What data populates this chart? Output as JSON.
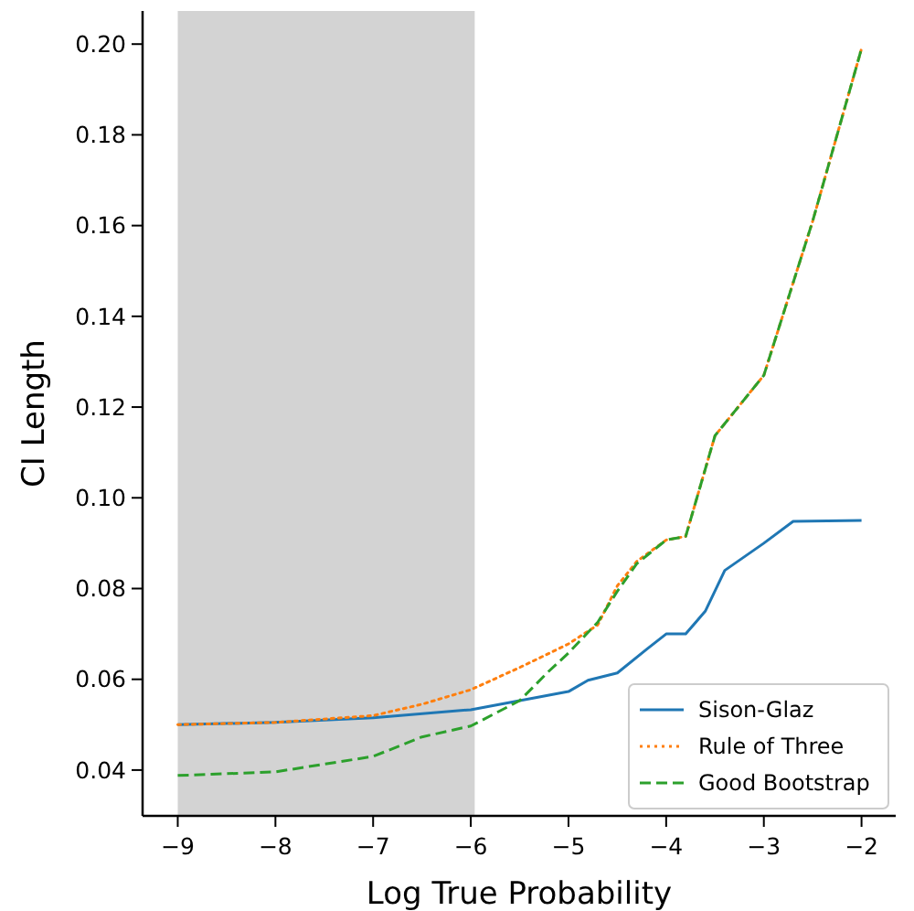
{
  "chart_data": {
    "type": "line",
    "xlabel": "Log True Probability",
    "ylabel": "CI Length",
    "xlim": [
      -9.36,
      -1.65
    ],
    "ylim": [
      0.0299,
      0.2073
    ],
    "xticks": [
      {
        "value": -9,
        "label": "−9"
      },
      {
        "value": -8,
        "label": "−8"
      },
      {
        "value": -7,
        "label": "−7"
      },
      {
        "value": -6,
        "label": "−6"
      },
      {
        "value": -5,
        "label": "−5"
      },
      {
        "value": -4,
        "label": "−4"
      },
      {
        "value": -3,
        "label": "−3"
      },
      {
        "value": -2,
        "label": "−2"
      }
    ],
    "yticks": [
      {
        "value": 0.04,
        "label": "0.04"
      },
      {
        "value": 0.06,
        "label": "0.06"
      },
      {
        "value": 0.08,
        "label": "0.08"
      },
      {
        "value": 0.1,
        "label": "0.10"
      },
      {
        "value": 0.12,
        "label": "0.12"
      },
      {
        "value": 0.14,
        "label": "0.14"
      },
      {
        "value": 0.16,
        "label": "0.16"
      },
      {
        "value": 0.18,
        "label": "0.18"
      },
      {
        "value": 0.2,
        "label": "0.20"
      }
    ],
    "grid": false,
    "legend": "bottom right",
    "marker": "none",
    "bands": [
      {
        "axis": "x",
        "from": -9,
        "to": -5.96,
        "color": "#d3d3d3"
      }
    ],
    "series": [
      {
        "name": "Sison-Glaz",
        "color": "#1f77b4",
        "line_style": "solid",
        "x": [
          -9,
          -8,
          -7,
          -6,
          -5.5,
          -5,
          -4.8,
          -4.5,
          -4.2,
          -4,
          -3.8,
          -3.6,
          -3.4,
          -3,
          -2.7,
          -2
        ],
        "values": [
          0.05,
          0.0505,
          0.0515,
          0.0533,
          0.0553,
          0.0573,
          0.0598,
          0.0614,
          0.0666,
          0.07,
          0.07,
          0.075,
          0.084,
          0.09,
          0.0948,
          0.095
        ]
      },
      {
        "name": "Rule of Three",
        "color": "#ff7f0e",
        "line_style": "dotted",
        "x": [
          -9,
          -8,
          -7,
          -6.5,
          -6,
          -5.5,
          -5,
          -4.7,
          -4.5,
          -4.3,
          -4,
          -3.8,
          -3.5,
          -3,
          -2.5,
          -2
        ],
        "values": [
          0.05,
          0.0505,
          0.052,
          0.0545,
          0.0577,
          0.0626,
          0.0678,
          0.072,
          0.0806,
          0.086,
          0.0907,
          0.0915,
          0.1137,
          0.127,
          0.161,
          0.199
        ]
      },
      {
        "name": "Good Bootstrap",
        "color": "#2ca02c",
        "line_style": "dashed",
        "x": [
          -9,
          -8,
          -7,
          -6.5,
          -6,
          -5.5,
          -5.2,
          -5,
          -4.7,
          -4.5,
          -4.3,
          -4,
          -3.8,
          -3.5,
          -3,
          -2.5,
          -2
        ],
        "values": [
          0.0388,
          0.0396,
          0.043,
          0.0473,
          0.0497,
          0.0553,
          0.0618,
          0.0658,
          0.0726,
          0.0794,
          0.0855,
          0.0907,
          0.0915,
          0.1137,
          0.127,
          0.161,
          0.199
        ]
      }
    ]
  }
}
